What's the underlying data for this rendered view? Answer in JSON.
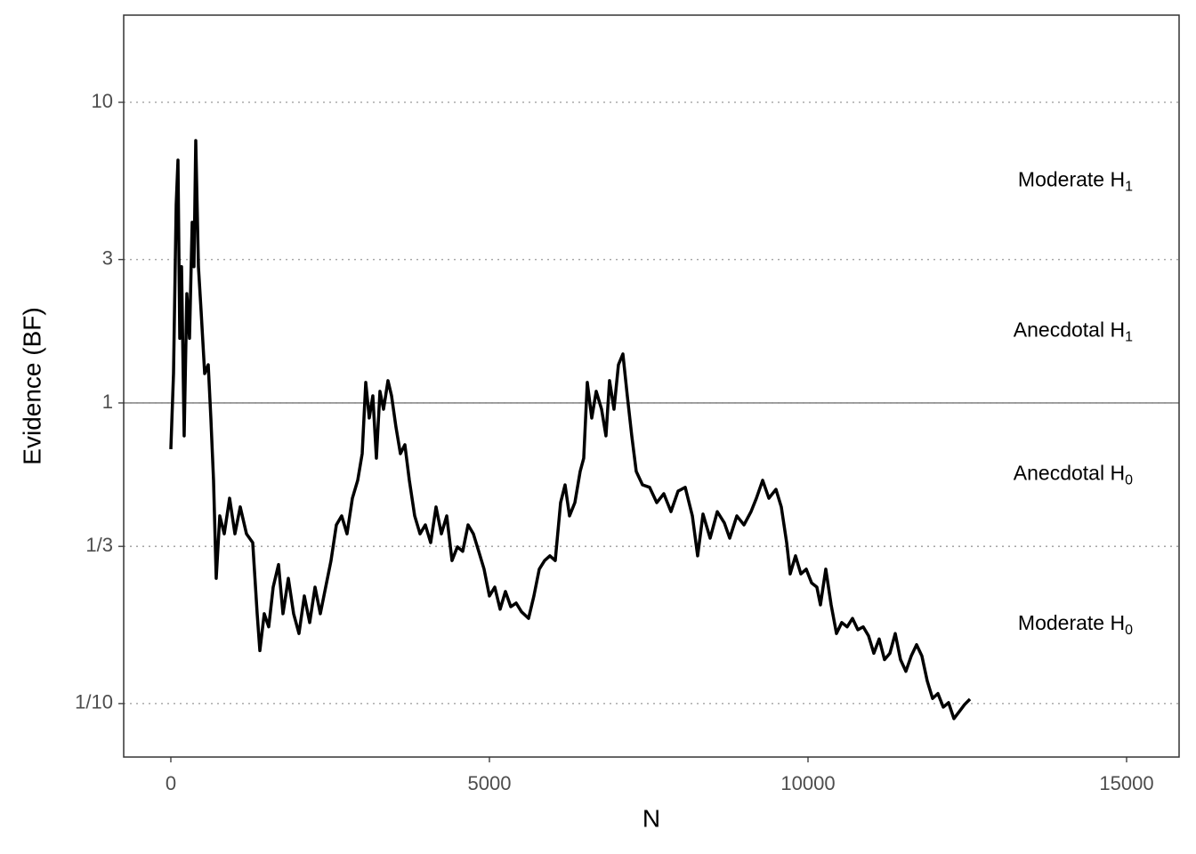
{
  "chart_data": {
    "type": "line",
    "x_label": "N",
    "y_label": "Evidence (BF)",
    "log_y": true,
    "xlim": [
      -740,
      15824
    ],
    "ylim": [
      0.0664,
      19.5
    ],
    "xticks": [
      0,
      5000,
      10000,
      15000
    ],
    "yticks": [
      10,
      3,
      1,
      {
        "value": 0.33333,
        "label": "1/3"
      },
      {
        "value": 0.1,
        "label": "1/10"
      }
    ],
    "grid": true,
    "hline": 1,
    "x": [
      0,
      42,
      84,
      112,
      140,
      168,
      209,
      251,
      293,
      335,
      363,
      391,
      433,
      475,
      531,
      587,
      628,
      670,
      712,
      768,
      838,
      922,
      1006,
      1089,
      1187,
      1285,
      1355,
      1397,
      1466,
      1536,
      1606,
      1690,
      1760,
      1844,
      1927,
      2011,
      2095,
      2179,
      2263,
      2346,
      2430,
      2514,
      2598,
      2681,
      2765,
      2849,
      2933,
      3003,
      3059,
      3114,
      3170,
      3226,
      3282,
      3338,
      3408,
      3464,
      3533,
      3603,
      3673,
      3743,
      3827,
      3911,
      3994,
      4078,
      4162,
      4246,
      4330,
      4413,
      4497,
      4581,
      4665,
      4748,
      4832,
      4916,
      5000,
      5084,
      5168,
      5251,
      5335,
      5419,
      5503,
      5614,
      5698,
      5782,
      5866,
      5949,
      6033,
      6117,
      6187,
      6257,
      6341,
      6424,
      6480,
      6536,
      6606,
      6676,
      6760,
      6829,
      6885,
      6955,
      7025,
      7095,
      7164,
      7234,
      7304,
      7402,
      7514,
      7626,
      7737,
      7849,
      7961,
      8073,
      8185,
      8268,
      8352,
      8464,
      8576,
      8687,
      8771,
      8883,
      8995,
      9106,
      9190,
      9288,
      9386,
      9497,
      9581,
      9665,
      9720,
      9804,
      9888,
      9972,
      10056,
      10139,
      10195,
      10279,
      10363,
      10447,
      10530,
      10614,
      10698,
      10782,
      10866,
      10950,
      11033,
      11117,
      11201,
      11285,
      11369,
      11452,
      11536,
      11620,
      11704,
      11787,
      11871,
      11955,
      12039,
      12123,
      12206,
      12290,
      12374,
      12458,
      12542
    ],
    "series": [
      {
        "color": "#000000",
        "values": [
          0.702,
          1.252,
          4.57,
          6.42,
          1.64,
          2.84,
          0.777,
          2.31,
          1.64,
          3.99,
          2.84,
          7.46,
          2.84,
          2.02,
          1.252,
          1.34,
          0.891,
          0.553,
          0.261,
          0.421,
          0.367,
          0.482,
          0.367,
          0.451,
          0.367,
          0.343,
          0.199,
          0.15,
          0.199,
          0.18,
          0.244,
          0.29,
          0.199,
          0.261,
          0.199,
          0.171,
          0.228,
          0.186,
          0.244,
          0.199,
          0.244,
          0.299,
          0.393,
          0.421,
          0.367,
          0.482,
          0.553,
          0.678,
          1.17,
          0.891,
          1.056,
          0.655,
          1.093,
          0.953,
          1.186,
          1.056,
          0.832,
          0.678,
          0.726,
          0.553,
          0.421,
          0.367,
          0.393,
          0.343,
          0.451,
          0.367,
          0.421,
          0.299,
          0.332,
          0.321,
          0.393,
          0.367,
          0.321,
          0.28,
          0.228,
          0.244,
          0.206,
          0.236,
          0.21,
          0.216,
          0.202,
          0.192,
          0.228,
          0.28,
          0.299,
          0.31,
          0.299,
          0.466,
          0.534,
          0.421,
          0.466,
          0.592,
          0.655,
          1.17,
          0.891,
          1.093,
          0.953,
          0.777,
          1.186,
          0.953,
          1.34,
          1.455,
          1.056,
          0.777,
          0.592,
          0.534,
          0.524,
          0.466,
          0.499,
          0.435,
          0.509,
          0.524,
          0.421,
          0.31,
          0.427,
          0.355,
          0.435,
          0.399,
          0.355,
          0.421,
          0.393,
          0.435,
          0.482,
          0.553,
          0.482,
          0.516,
          0.451,
          0.343,
          0.27,
          0.31,
          0.27,
          0.28,
          0.252,
          0.244,
          0.213,
          0.28,
          0.213,
          0.171,
          0.186,
          0.18,
          0.192,
          0.176,
          0.18,
          0.168,
          0.147,
          0.164,
          0.14,
          0.147,
          0.171,
          0.14,
          0.128,
          0.144,
          0.157,
          0.144,
          0.119,
          0.104,
          0.108,
          0.0973,
          0.1007,
          0.0891,
          0.094,
          0.0993,
          0.1035
        ]
      }
    ],
    "annotations": [
      {
        "text": "Moderate H",
        "sub": "1",
        "y": 5.48
      },
      {
        "text": "Anecdotal H",
        "sub": "1",
        "y": 1.73
      },
      {
        "text": "Anecdotal H",
        "sub": "0",
        "y": 0.577
      },
      {
        "text": "Moderate H",
        "sub": "0",
        "y": 0.183
      }
    ]
  }
}
